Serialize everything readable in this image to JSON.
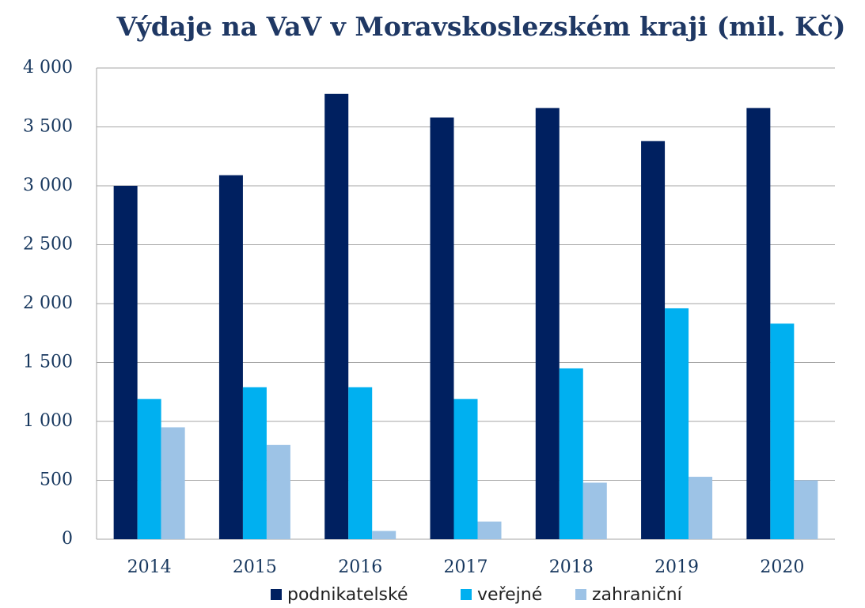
{
  "chart_data": {
    "type": "bar",
    "title": "Výdaje na VaV v Moravskoslezském kraji (mil. Kč)",
    "categories": [
      "2014",
      "2015",
      "2016",
      "2017",
      "2018",
      "2019",
      "2020"
    ],
    "series": [
      {
        "name": "podnikatelské",
        "color": "#002060",
        "values": [
          3000,
          3090,
          3780,
          3580,
          3660,
          3380,
          3660
        ]
      },
      {
        "name": "veřejné",
        "color": "#00b0f0",
        "values": [
          1190,
          1290,
          1290,
          1190,
          1450,
          1960,
          1830
        ]
      },
      {
        "name": "zahraniční",
        "color": "#9dc3e6",
        "values": [
          950,
          800,
          70,
          150,
          480,
          530,
          500
        ]
      }
    ],
    "ylim": [
      0,
      4000
    ],
    "yticks": [
      0,
      500,
      {
        "value": 1000,
        "label": "1 000"
      },
      {
        "value": 1500,
        "label": "1 500"
      },
      {
        "value": 2000,
        "label": "2 000"
      },
      {
        "value": 2500,
        "label": "2 500"
      },
      {
        "value": 3000,
        "label": "3 000"
      },
      {
        "value": 3500,
        "label": "3 500"
      },
      {
        "value": 4000,
        "label": "4 000"
      }
    ],
    "grid": true,
    "legend": "bottom"
  }
}
